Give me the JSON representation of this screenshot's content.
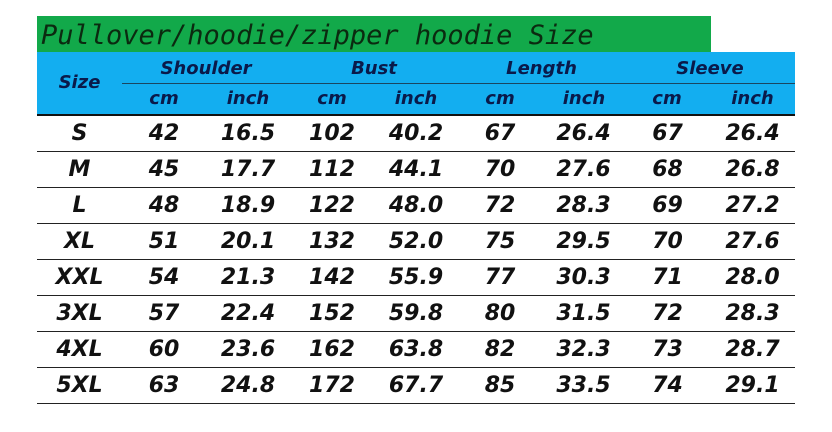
{
  "title": "Pullover/hoodie/zipper hoodie Size",
  "header": {
    "size": "Size",
    "groups": [
      "Shoulder",
      "Bust",
      "Length",
      "Sleeve"
    ],
    "units": [
      "cm",
      "inch",
      "cm",
      "inch",
      "cm",
      "inch",
      "cm",
      "inch"
    ]
  },
  "rows": [
    [
      "S",
      "42",
      "16.5",
      "102",
      "40.2",
      "67",
      "26.4",
      "67",
      "26.4"
    ],
    [
      "M",
      "45",
      "17.7",
      "112",
      "44.1",
      "70",
      "27.6",
      "68",
      "26.8"
    ],
    [
      "L",
      "48",
      "18.9",
      "122",
      "48.0",
      "72",
      "28.3",
      "69",
      "27.2"
    ],
    [
      "XL",
      "51",
      "20.1",
      "132",
      "52.0",
      "75",
      "29.5",
      "70",
      "27.6"
    ],
    [
      "XXL",
      "54",
      "21.3",
      "142",
      "55.9",
      "77",
      "30.3",
      "71",
      "28.0"
    ],
    [
      "3XL",
      "57",
      "22.4",
      "152",
      "59.8",
      "80",
      "31.5",
      "72",
      "28.3"
    ],
    [
      "4XL",
      "60",
      "23.6",
      "162",
      "63.8",
      "82",
      "32.3",
      "73",
      "28.7"
    ],
    [
      "5XL",
      "63",
      "24.8",
      "172",
      "67.7",
      "85",
      "33.5",
      "74",
      "29.1"
    ]
  ]
}
